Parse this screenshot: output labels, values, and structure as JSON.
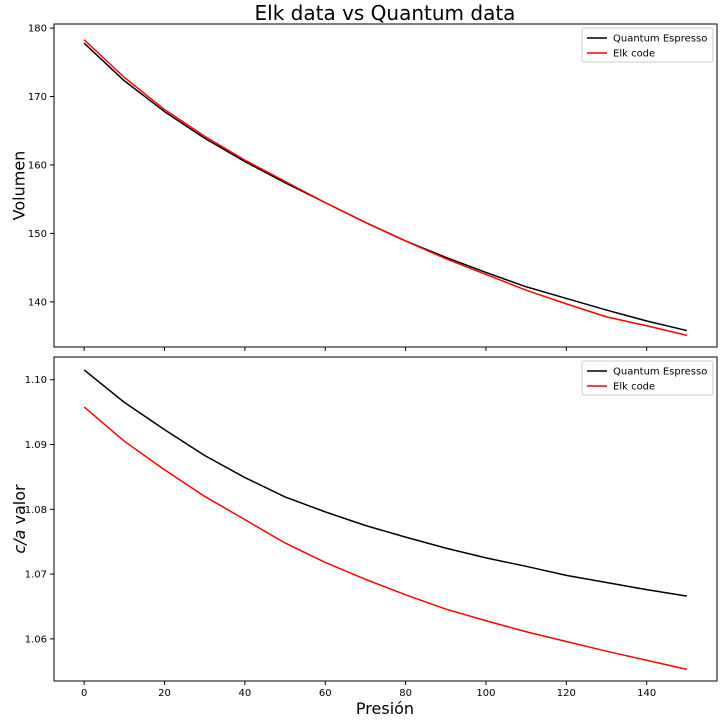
{
  "chart_data": {
    "type": "line",
    "title": "Elk data vs Quantum data",
    "xlabel": "Presión",
    "x_ticks": [
      0,
      20,
      40,
      60,
      80,
      100,
      120,
      140
    ],
    "xlim": [
      -7.5,
      157.5
    ],
    "panels": [
      {
        "ylabel": "Volumen",
        "ylim": [
          133.4,
          180.6
        ],
        "y_ticks": [
          140,
          150,
          160,
          170,
          180
        ],
        "legend_position": "top-right",
        "series": [
          {
            "name": "Quantum Espresso",
            "color": "#000000",
            "points": [
              [
                0,
                177.8
              ],
              [
                10,
                172.3
              ],
              [
                20,
                167.8
              ],
              [
                30,
                163.9
              ],
              [
                40,
                160.5
              ],
              [
                50,
                157.4
              ],
              [
                60,
                154.5
              ],
              [
                70,
                151.6
              ],
              [
                80,
                148.9
              ],
              [
                90,
                146.5
              ],
              [
                100,
                144.3
              ],
              [
                110,
                142.2
              ],
              [
                120,
                140.5
              ],
              [
                130,
                138.8
              ],
              [
                140,
                137.2
              ],
              [
                150,
                135.8
              ]
            ]
          },
          {
            "name": "Elk code",
            "color": "#ff0000",
            "points": [
              [
                0,
                178.3
              ],
              [
                10,
                172.8
              ],
              [
                20,
                168.1
              ],
              [
                30,
                164.2
              ],
              [
                40,
                160.7
              ],
              [
                50,
                157.6
              ],
              [
                60,
                154.5
              ],
              [
                70,
                151.6
              ],
              [
                80,
                148.9
              ],
              [
                90,
                146.3
              ],
              [
                100,
                144.0
              ],
              [
                110,
                141.7
              ],
              [
                120,
                139.7
              ],
              [
                130,
                137.8
              ],
              [
                140,
                136.5
              ],
              [
                150,
                135.1
              ]
            ]
          }
        ]
      },
      {
        "ylabel": "c/a valor",
        "ylim": [
          1.0535,
          1.1035
        ],
        "y_ticks": [
          1.06,
          1.07,
          1.08,
          1.09,
          1.1
        ],
        "y_tick_labels": [
          "1.06",
          "1.07",
          "1.08",
          "1.09",
          "1.10"
        ],
        "legend_position": "top-right",
        "series": [
          {
            "name": "Quantum Espresso",
            "color": "#000000",
            "points": [
              [
                0,
                1.1015
              ],
              [
                10,
                1.0965
              ],
              [
                20,
                1.0923
              ],
              [
                30,
                1.0883
              ],
              [
                40,
                1.0849
              ],
              [
                50,
                1.0819
              ],
              [
                60,
                1.0796
              ],
              [
                70,
                1.0775
              ],
              [
                80,
                1.0757
              ],
              [
                90,
                1.074
              ],
              [
                100,
                1.0725
              ],
              [
                110,
                1.0712
              ],
              [
                120,
                1.0698
              ],
              [
                130,
                1.0687
              ],
              [
                140,
                1.0676
              ],
              [
                150,
                1.0666
              ]
            ]
          },
          {
            "name": "Elk code",
            "color": "#ff0000",
            "points": [
              [
                0,
                1.0958
              ],
              [
                10,
                1.0905
              ],
              [
                20,
                1.0861
              ],
              [
                30,
                1.082
              ],
              [
                40,
                1.0784
              ],
              [
                50,
                1.0748
              ],
              [
                60,
                1.0718
              ],
              [
                70,
                1.0692
              ],
              [
                80,
                1.0668
              ],
              [
                90,
                1.0646
              ],
              [
                100,
                1.0628
              ],
              [
                110,
                1.0611
              ],
              [
                120,
                1.0596
              ],
              [
                130,
                1.0581
              ],
              [
                140,
                1.0567
              ],
              [
                150,
                1.0553
              ]
            ]
          }
        ]
      }
    ]
  }
}
